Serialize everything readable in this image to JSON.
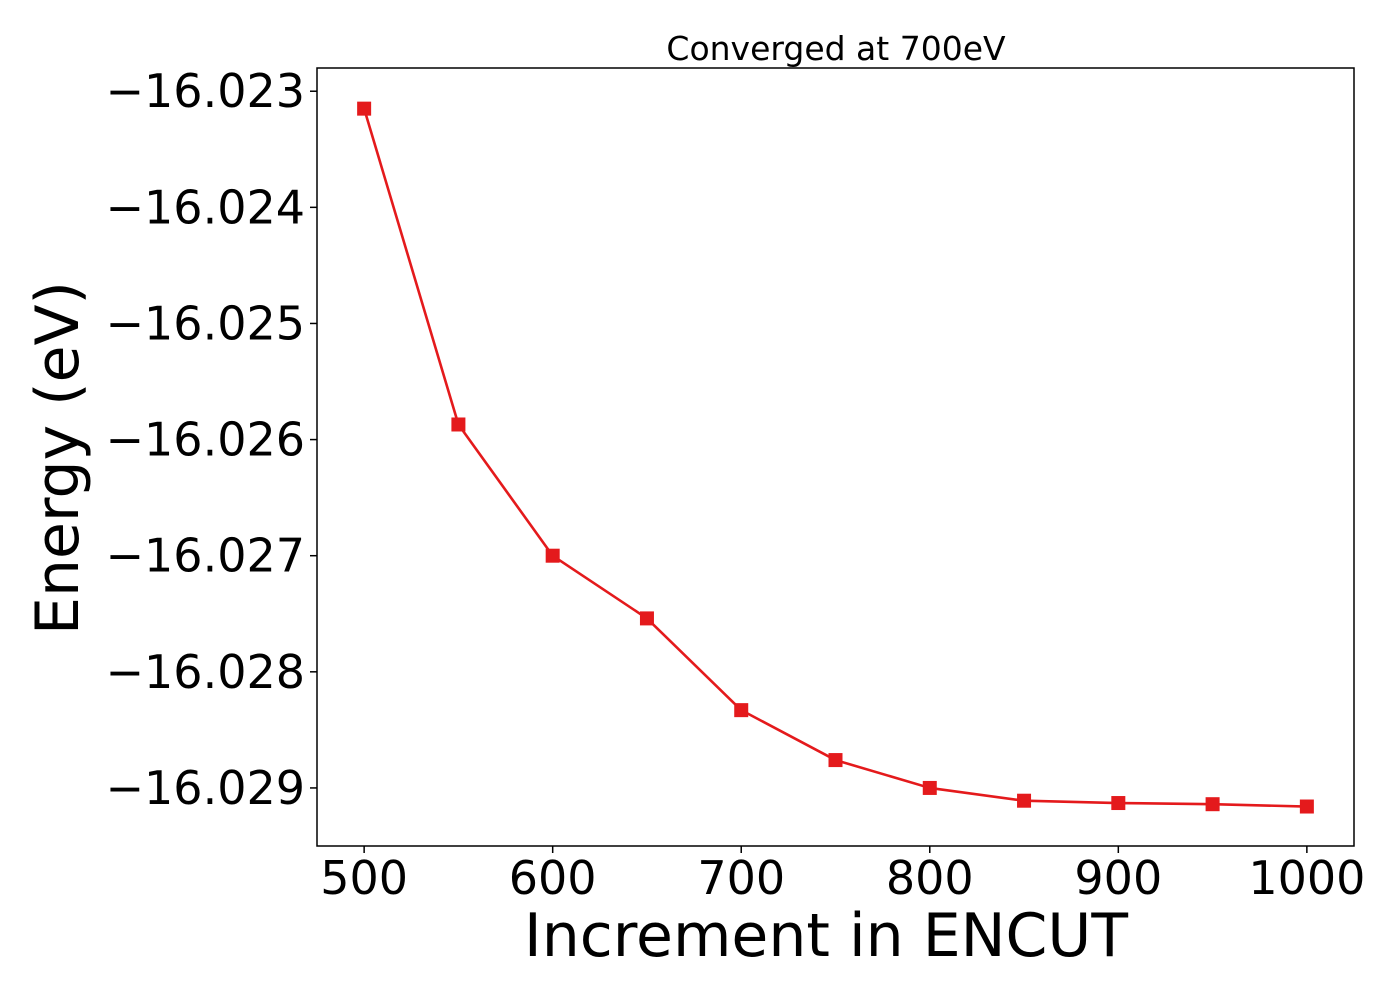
{
  "chart_data": {
    "type": "line",
    "title": "Converged at 700eV",
    "xlabel": "Increment in ENCUT",
    "ylabel": "Energy (eV)",
    "xlim": [
      475,
      1025
    ],
    "ylim": [
      -16.0295,
      -16.0228
    ],
    "xticks": [
      500,
      600,
      700,
      800,
      900,
      1000
    ],
    "xtick_labels": [
      "500",
      "600",
      "700",
      "800",
      "900",
      "1000"
    ],
    "yticks": [
      -16.023,
      -16.024,
      -16.025,
      -16.026,
      -16.027,
      -16.028,
      -16.029
    ],
    "ytick_labels": [
      "−16.023",
      "−16.024",
      "−16.025",
      "−16.026",
      "−16.027",
      "−16.028",
      "−16.029"
    ],
    "grid": false,
    "series": [
      {
        "color": "#e41a1c",
        "marker": "square",
        "x": [
          500,
          550,
          600,
          650,
          700,
          750,
          800,
          850,
          900,
          950,
          1000
        ],
        "y": [
          -16.02315,
          -16.02587,
          -16.027,
          -16.02754,
          -16.02833,
          -16.02876,
          -16.029,
          -16.02911,
          -16.02913,
          -16.02914,
          -16.02916
        ]
      }
    ]
  }
}
